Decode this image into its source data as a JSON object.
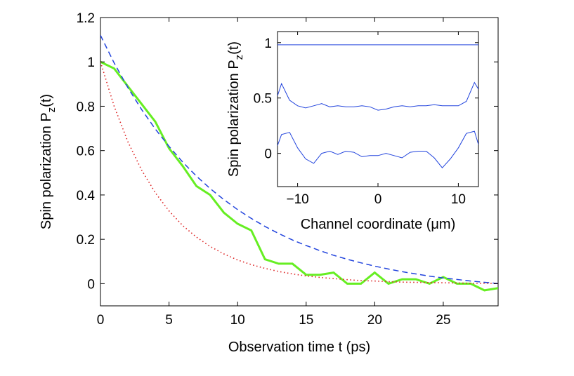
{
  "chart_data": [
    {
      "type": "line",
      "xlabel": "Observation time t (ps)",
      "ylabel_main": "Spin polarization  P",
      "ylabel_sub": "z",
      "ylabel_tail": "(t)",
      "xlim": [
        0,
        29
      ],
      "ylim": [
        -0.1,
        1.2
      ],
      "xticks": [
        0,
        5,
        10,
        15,
        20,
        25
      ],
      "xtick_labels": [
        "0",
        "5",
        "10",
        "15",
        "20",
        "25"
      ],
      "yticks": [
        0,
        0.2,
        0.4,
        0.6,
        0.8,
        1,
        1.2
      ],
      "ytick_labels": [
        "0",
        "0.2",
        "0.4",
        "0.6",
        "0.8",
        "1",
        "1.2"
      ],
      "grid": false,
      "series": [
        {
          "color": "#66ee22",
          "style": "solid",
          "x": [
            0,
            1,
            2,
            3,
            4,
            5,
            6,
            7,
            8,
            9,
            10,
            11,
            12,
            13,
            14,
            15,
            16,
            17,
            18,
            19,
            20,
            21,
            22,
            23,
            24,
            25,
            26,
            27,
            28,
            29
          ],
          "y": [
            1.0,
            0.97,
            0.89,
            0.81,
            0.73,
            0.61,
            0.53,
            0.44,
            0.4,
            0.32,
            0.27,
            0.24,
            0.11,
            0.09,
            0.09,
            0.04,
            0.04,
            0.05,
            0.0,
            0.0,
            0.05,
            0.0,
            0.02,
            0.02,
            0.0,
            0.03,
            0.0,
            0.0,
            -0.03,
            -0.02
          ]
        },
        {
          "color": "#2244dd",
          "style": "dashed",
          "x": [
            0,
            1,
            2,
            3,
            4,
            5,
            6,
            7,
            8,
            9,
            10,
            11,
            12,
            13,
            14,
            15,
            16,
            17,
            18,
            19,
            20,
            21,
            22,
            23,
            24,
            25,
            26,
            27,
            28,
            29
          ],
          "y": [
            1.12,
            0.995,
            0.884,
            0.785,
            0.697,
            0.619,
            0.548,
            0.485,
            0.429,
            0.379,
            0.334,
            0.294,
            0.258,
            0.226,
            0.197,
            0.172,
            0.149,
            0.128,
            0.11,
            0.094,
            0.079,
            0.066,
            0.054,
            0.044,
            0.034,
            0.026,
            0.019,
            0.012,
            0.006,
            0.001
          ]
        },
        {
          "color": "#dd2222",
          "style": "dotted",
          "x": [
            0,
            1,
            2,
            3,
            4,
            5,
            6,
            7,
            8,
            9,
            10,
            11,
            12,
            13,
            14,
            15,
            16,
            17,
            18,
            19,
            20,
            21,
            22,
            23,
            24,
            25,
            26,
            27,
            28,
            29
          ],
          "y": [
            1.0,
            0.8,
            0.64,
            0.512,
            0.41,
            0.328,
            0.262,
            0.21,
            0.168,
            0.134,
            0.107,
            0.086,
            0.069,
            0.055,
            0.044,
            0.035,
            0.028,
            0.023,
            0.018,
            0.014,
            0.012,
            0.009,
            0.007,
            0.006,
            0.005,
            0.004,
            0.003,
            0.002,
            0.002,
            0.001
          ]
        }
      ]
    },
    {
      "type": "line",
      "xlabel": "Channel coordinate  (μm)",
      "ylabel_main": "Spin polarization P",
      "ylabel_sub": "z",
      "ylabel_tail": "(t)",
      "xlim": [
        -12.5,
        12.5
      ],
      "ylim": [
        -0.3,
        1.1
      ],
      "xticks": [
        -10,
        0,
        10
      ],
      "xtick_labels": [
        "−10",
        "0",
        "10"
      ],
      "yticks": [
        0,
        0.5,
        1
      ],
      "ytick_labels": [
        "0",
        "0.5",
        "1"
      ],
      "grid": false,
      "series": [
        {
          "color": "#2244dd",
          "style": "solid",
          "x": [
            -12.5,
            -11.5,
            -10.5,
            -9.5,
            -8.5,
            -7.5,
            -6.5,
            -5.5,
            -4.5,
            -3.5,
            -2.5,
            -1.5,
            -0.5,
            0.5,
            1.5,
            2.5,
            3.5,
            4.5,
            5.5,
            6.5,
            7.5,
            8.5,
            9.5,
            10.5,
            11.5,
            12.5
          ],
          "y": [
            0.98,
            0.98,
            0.98,
            0.98,
            0.98,
            0.98,
            0.98,
            0.98,
            0.98,
            0.98,
            0.98,
            0.98,
            0.98,
            0.98,
            0.98,
            0.98,
            0.98,
            0.98,
            0.98,
            0.98,
            0.98,
            0.98,
            0.98,
            0.98,
            0.98,
            0.98
          ]
        },
        {
          "color": "#2244dd",
          "style": "solid",
          "x": [
            -12.5,
            -12,
            -11,
            -10,
            -9,
            -8,
            -7,
            -6,
            -5,
            -4,
            -3,
            -2,
            -1,
            0,
            1,
            2,
            3,
            4,
            5,
            6,
            7,
            8,
            9,
            10,
            11,
            12,
            12.5
          ],
          "y": [
            0.52,
            0.63,
            0.48,
            0.43,
            0.41,
            0.43,
            0.45,
            0.42,
            0.43,
            0.42,
            0.42,
            0.43,
            0.42,
            0.39,
            0.4,
            0.42,
            0.43,
            0.42,
            0.43,
            0.43,
            0.44,
            0.43,
            0.43,
            0.43,
            0.47,
            0.64,
            0.58
          ]
        },
        {
          "color": "#2244dd",
          "style": "solid",
          "x": [
            -12.5,
            -12,
            -11,
            -10,
            -9,
            -8,
            -7,
            -6,
            -5,
            -4,
            -3,
            -2,
            -1,
            0,
            1,
            2,
            3,
            4,
            5,
            6,
            7,
            8,
            9,
            10,
            11,
            12,
            12.5
          ],
          "y": [
            0.07,
            0.17,
            0.19,
            0.05,
            -0.05,
            -0.09,
            0.0,
            0.02,
            -0.01,
            0.02,
            0.01,
            -0.03,
            -0.02,
            -0.02,
            0.0,
            -0.02,
            -0.04,
            0.01,
            0.02,
            0.02,
            -0.04,
            -0.13,
            -0.05,
            0.05,
            0.18,
            0.2,
            0.08
          ]
        }
      ]
    }
  ]
}
